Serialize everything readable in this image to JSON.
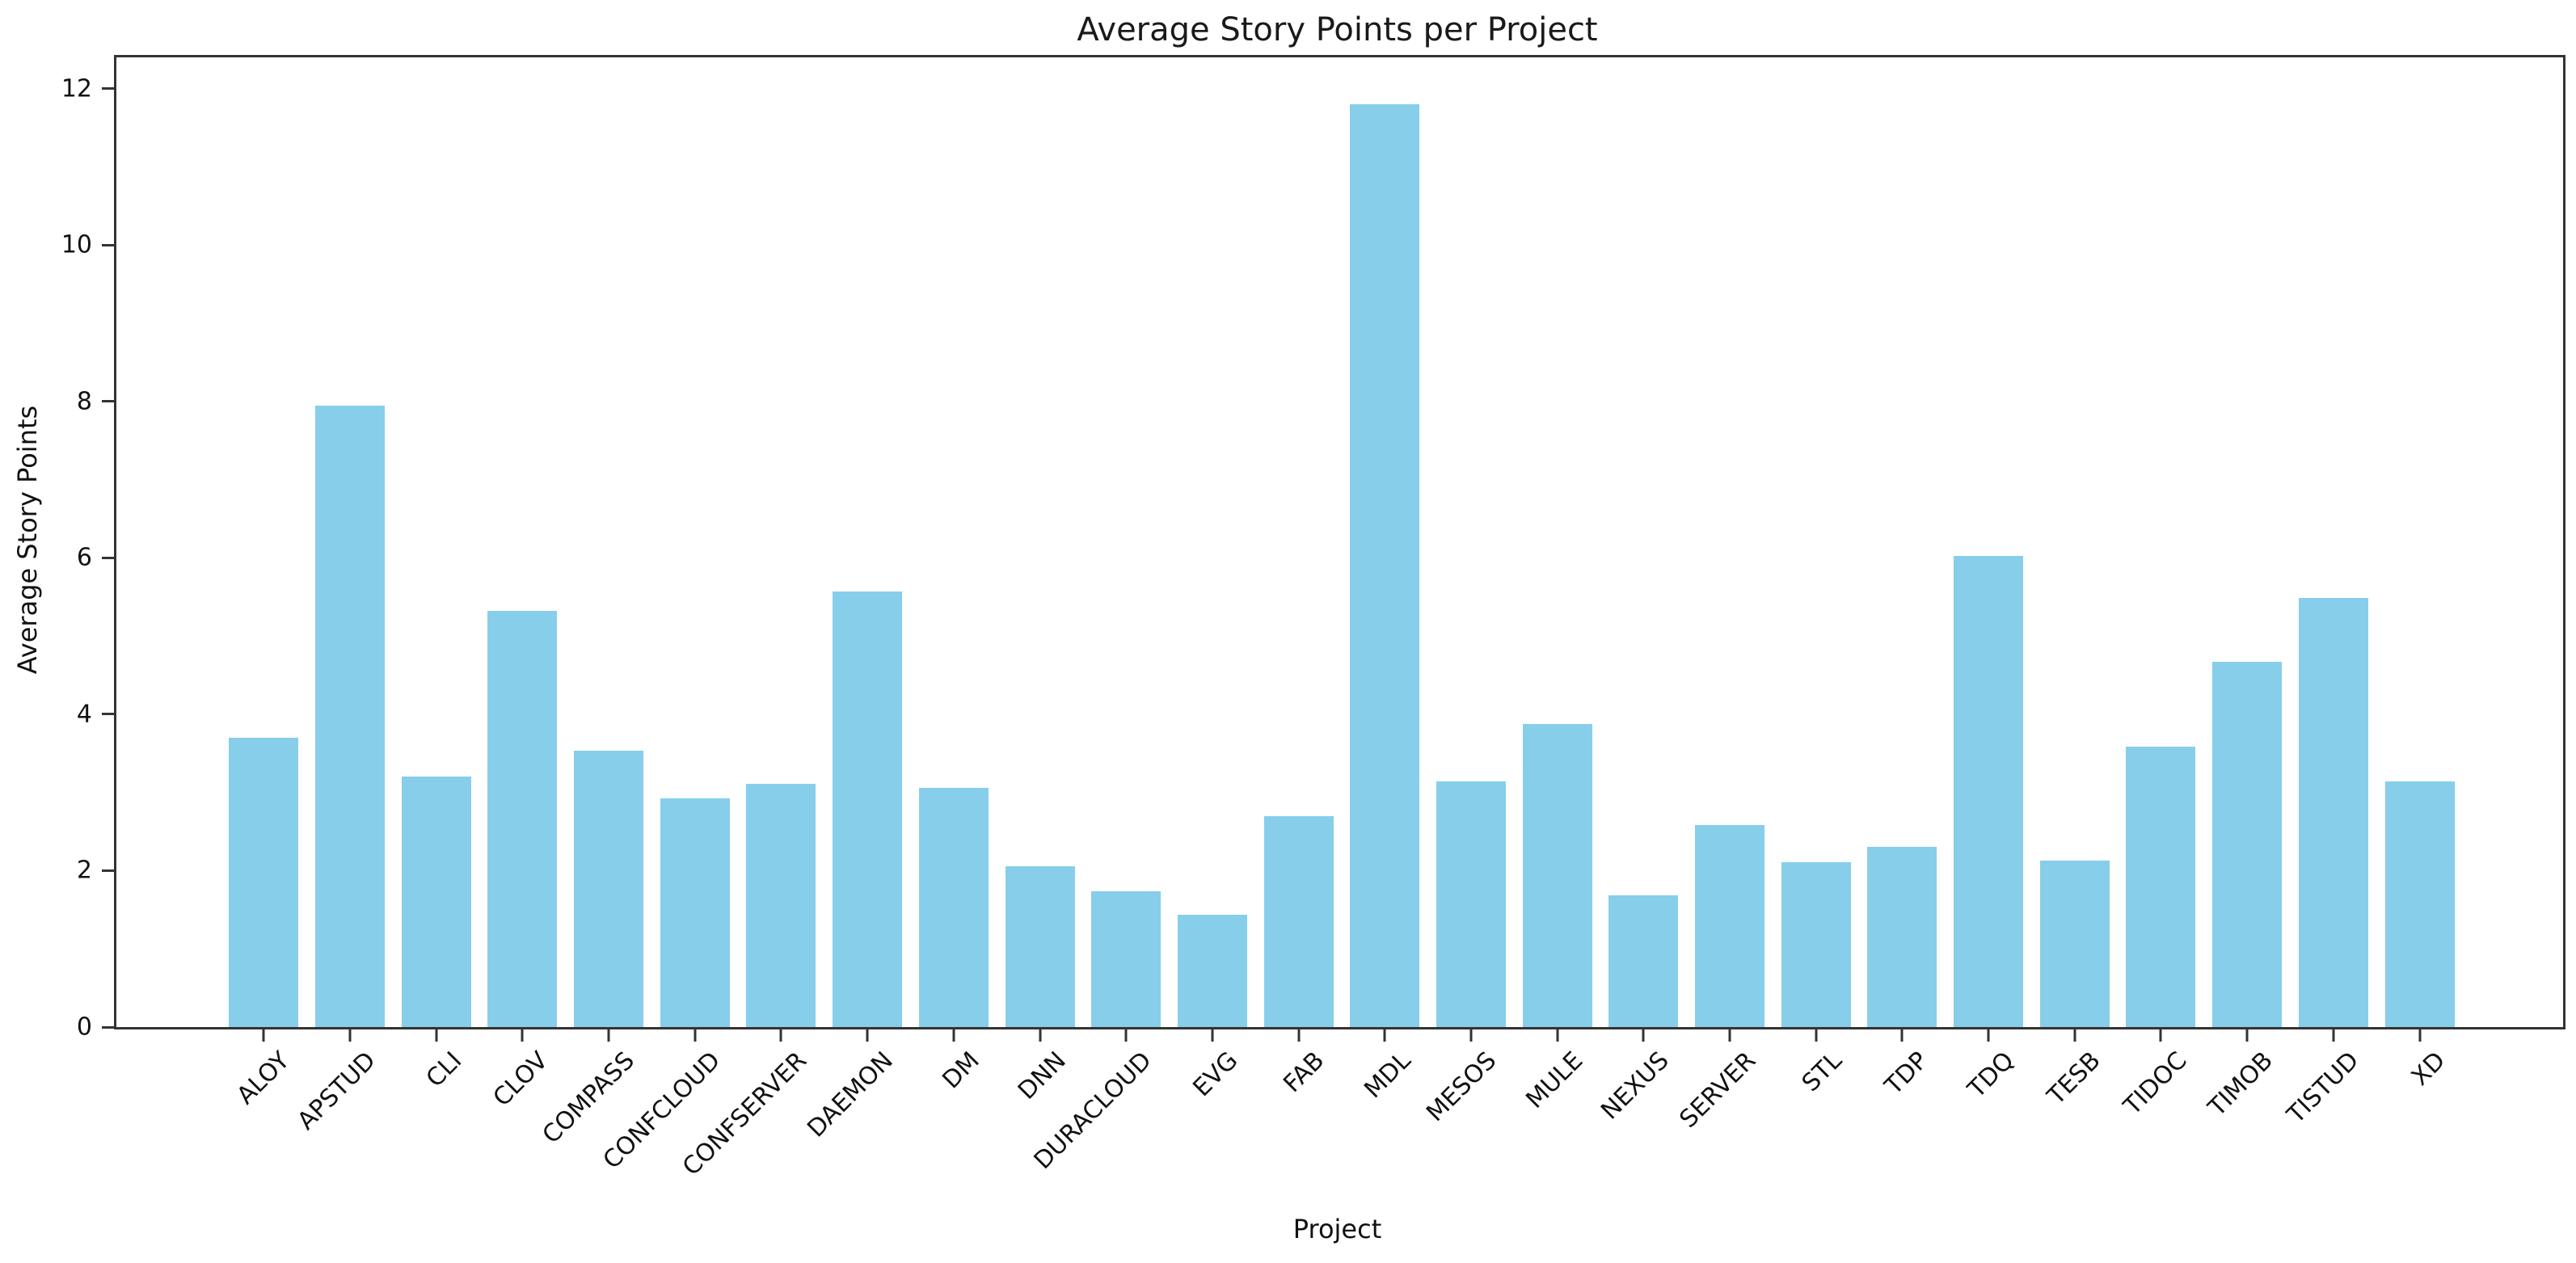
{
  "chart_data": {
    "type": "bar",
    "title": "Average Story Points per Project",
    "xlabel": "Project",
    "ylabel": "Average Story Points",
    "categories": [
      "ALOY",
      "APSTUD",
      "CLI",
      "CLOV",
      "COMPASS",
      "CONFCLOUD",
      "CONFSERVER",
      "DAEMON",
      "DM",
      "DNN",
      "DURACLOUD",
      "EVG",
      "FAB",
      "MDL",
      "MESOS",
      "MULE",
      "NEXUS",
      "SERVER",
      "STL",
      "TDP",
      "TDQ",
      "TESB",
      "TIDOC",
      "TIMOB",
      "TISTUD",
      "XD"
    ],
    "values": [
      3.7,
      7.95,
      3.2,
      5.32,
      3.53,
      2.92,
      3.11,
      5.57,
      3.06,
      2.06,
      1.74,
      1.44,
      2.7,
      11.8,
      3.14,
      3.87,
      1.68,
      2.58,
      2.11,
      2.3,
      6.02,
      2.13,
      3.59,
      4.67,
      5.49,
      3.14
    ],
    "ylim": [
      0,
      12.4
    ],
    "yticks": [
      0,
      2,
      4,
      6,
      8,
      10,
      12
    ],
    "x_tick_rotation_deg": 45,
    "grid": false,
    "legend": null,
    "bar_color": "#87CEEB",
    "spine_color": "#333333",
    "text_color": "#111111",
    "background_color": "#ffffff"
  }
}
